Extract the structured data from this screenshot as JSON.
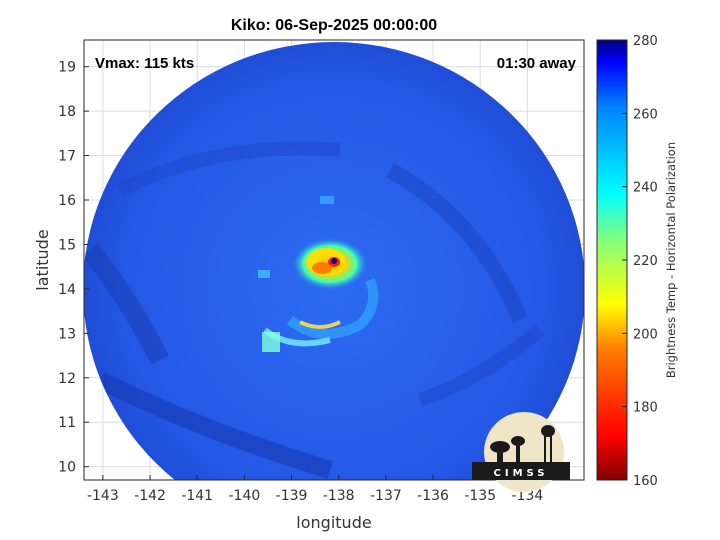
{
  "title": "Kiko: 06-Sep-2025 00:00:00",
  "vmax_label": "Vmax: 115 kts",
  "time_offset_label": "01:30 away",
  "xlabel": "longitude",
  "ylabel": "latitude",
  "colorbar_label": "Brightness Temp - Horizontal Polarization",
  "logo_text": "CIMSS",
  "chart_data": {
    "type": "heatmap",
    "x_ticks": [
      -143,
      -142,
      -141,
      -140,
      -139,
      -138,
      -137,
      -136,
      -135,
      -134
    ],
    "y_ticks": [
      10,
      11,
      12,
      13,
      14,
      15,
      16,
      17,
      18,
      19
    ],
    "xlim": [
      -143.4,
      -132.8
    ],
    "ylim": [
      9.7,
      19.6
    ],
    "colorbar_ticks": [
      160,
      180,
      200,
      220,
      240,
      260,
      280
    ],
    "colorbar_range": [
      160,
      280
    ],
    "storm_center": {
      "lon": -138.1,
      "lat": 14.6
    },
    "grid": true
  },
  "colors": {
    "background_scene": "#1f4fe0",
    "ocean_low": "#2a63f0",
    "ocean_high": "#1a3cb8"
  }
}
